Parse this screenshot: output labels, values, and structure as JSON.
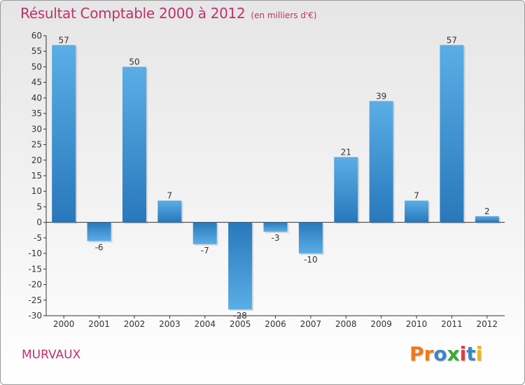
{
  "header": {
    "title": "Résultat Comptable 2000 à 2012",
    "subtitle": "(en milliers d'€)"
  },
  "footer": {
    "commune": "MURVAUX",
    "logo_text": "Proxiti"
  },
  "colors": {
    "title": "#c0306a",
    "bar_light": "#5aaee6",
    "bar_dark": "#2878bb",
    "logo": [
      "#f07a1a",
      "#f07a1a",
      "#3a86c8",
      "#3aa83a",
      "#e23b3b",
      "#3a86c8",
      "#f0b41a"
    ]
  },
  "chart_data": {
    "type": "bar",
    "title": "Résultat Comptable 2000 à 2012",
    "subtitle": "(en milliers d'€)",
    "xlabel": "",
    "ylabel": "",
    "categories": [
      "2000",
      "2001",
      "2002",
      "2003",
      "2004",
      "2005",
      "2006",
      "2007",
      "2008",
      "2009",
      "2010",
      "2011",
      "2012"
    ],
    "values": [
      57,
      -6,
      50,
      7,
      -7,
      -28,
      -3,
      -10,
      21,
      39,
      7,
      57,
      2
    ],
    "labels": [
      "57",
      "-6",
      "50",
      "7",
      "-7",
      "-28",
      "-3",
      "-10",
      "21",
      "39",
      "7",
      "57",
      "2"
    ],
    "ylim": [
      -30,
      60
    ],
    "yticks": [
      -30,
      -25,
      -20,
      -15,
      -10,
      -5,
      0,
      5,
      10,
      15,
      20,
      25,
      30,
      35,
      40,
      45,
      50,
      55,
      60
    ],
    "grid": false,
    "legend": "none"
  }
}
